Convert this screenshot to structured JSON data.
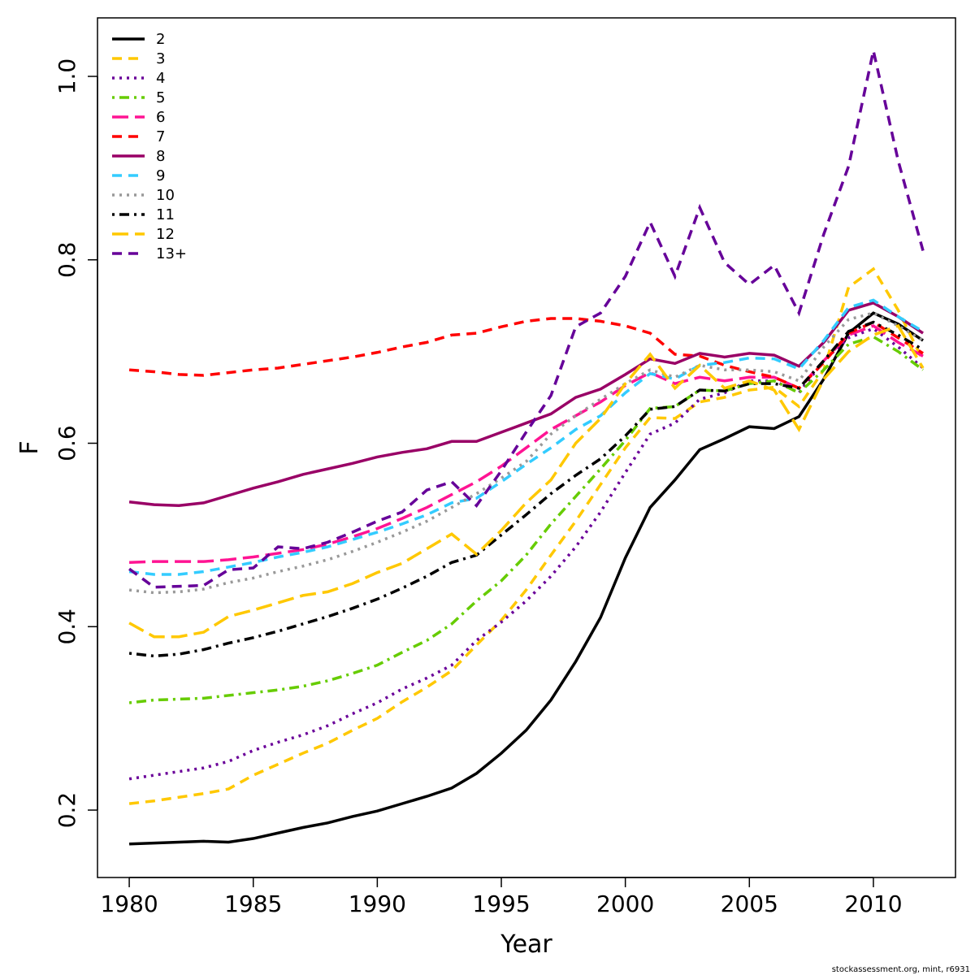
{
  "chart_data": {
    "type": "line",
    "xlabel": "Year",
    "ylabel": "F",
    "footnote": "stockassessment.org, mint, r6931",
    "x": [
      1980,
      1981,
      1982,
      1983,
      1984,
      1985,
      1986,
      1987,
      1988,
      1989,
      1990,
      1991,
      1992,
      1993,
      1994,
      1995,
      1996,
      1997,
      1998,
      1999,
      2000,
      2001,
      2002,
      2003,
      2004,
      2005,
      2006,
      2007,
      2008,
      2009,
      2010,
      2011,
      2012
    ],
    "xlim": [
      1978.72,
      2013.31
    ],
    "xticks": [
      1980,
      1985,
      1990,
      1995,
      2000,
      2005,
      2010
    ],
    "ylim": [
      0.1265,
      1.0638
    ],
    "yticks": [
      0.2,
      0.4,
      0.6,
      0.8,
      {
        "value": 1,
        "label": "1.0"
      }
    ],
    "legend": "top-left",
    "series": [
      {
        "name": "2",
        "color": "#000000",
        "linestyle": "solid",
        "values": [
          0.163,
          0.164,
          0.165,
          0.166,
          0.165,
          0.169,
          0.175,
          0.181,
          0.186,
          0.193,
          0.199,
          0.207,
          0.215,
          0.224,
          0.24,
          0.262,
          0.287,
          0.32,
          0.362,
          0.41,
          0.475,
          0.53,
          0.56,
          0.593,
          0.605,
          0.618,
          0.616,
          0.629,
          0.67,
          0.72,
          0.742,
          0.73,
          0.712
        ]
      },
      {
        "name": "3",
        "color": "#ffc800",
        "linestyle": "dashed",
        "values": [
          0.207,
          0.21,
          0.214,
          0.218,
          0.223,
          0.238,
          0.25,
          0.262,
          0.273,
          0.287,
          0.3,
          0.318,
          0.334,
          0.352,
          0.38,
          0.407,
          0.44,
          0.478,
          0.515,
          0.555,
          0.595,
          0.628,
          0.627,
          0.645,
          0.65,
          0.658,
          0.661,
          0.64,
          0.68,
          0.77,
          0.79,
          0.745,
          0.69
        ]
      },
      {
        "name": "4",
        "color": "#6a0099",
        "linestyle": "dotted",
        "values": [
          0.234,
          0.238,
          0.242,
          0.246,
          0.253,
          0.265,
          0.274,
          0.282,
          0.292,
          0.305,
          0.317,
          0.332,
          0.344,
          0.358,
          0.385,
          0.405,
          0.428,
          0.455,
          0.487,
          0.525,
          0.568,
          0.61,
          0.622,
          0.648,
          0.655,
          0.668,
          0.668,
          0.655,
          0.69,
          0.715,
          0.725,
          0.705,
          0.682
        ]
      },
      {
        "name": "5",
        "color": "#66cc00",
        "linestyle": "dotdash",
        "values": [
          0.317,
          0.32,
          0.321,
          0.322,
          0.325,
          0.328,
          0.331,
          0.335,
          0.341,
          0.349,
          0.358,
          0.372,
          0.385,
          0.403,
          0.428,
          0.45,
          0.478,
          0.512,
          0.542,
          0.572,
          0.603,
          0.638,
          0.64,
          0.658,
          0.657,
          0.665,
          0.668,
          0.655,
          0.68,
          0.708,
          0.716,
          0.7,
          0.68
        ]
      },
      {
        "name": "6",
        "color": "#ff1493",
        "linestyle": "longdash",
        "values": [
          0.47,
          0.471,
          0.471,
          0.471,
          0.473,
          0.476,
          0.48,
          0.484,
          0.49,
          0.498,
          0.507,
          0.518,
          0.53,
          0.544,
          0.558,
          0.575,
          0.595,
          0.615,
          0.63,
          0.645,
          0.663,
          0.677,
          0.665,
          0.672,
          0.668,
          0.672,
          0.672,
          0.66,
          0.69,
          0.718,
          0.728,
          0.71,
          0.695
        ]
      },
      {
        "name": "7",
        "color": "#ff0000",
        "linestyle": "dashed",
        "values": [
          0.68,
          0.678,
          0.675,
          0.674,
          0.677,
          0.68,
          0.682,
          0.686,
          0.69,
          0.694,
          0.699,
          0.705,
          0.71,
          0.718,
          0.72,
          0.727,
          0.733,
          0.736,
          0.736,
          0.733,
          0.728,
          0.72,
          0.697,
          0.695,
          0.685,
          0.678,
          0.672,
          0.66,
          0.688,
          0.72,
          0.732,
          0.715,
          0.698
        ]
      },
      {
        "name": "8",
        "color": "#990066",
        "linestyle": "solid",
        "values": [
          0.536,
          0.533,
          0.532,
          0.535,
          0.543,
          0.551,
          0.558,
          0.566,
          0.572,
          0.578,
          0.585,
          0.59,
          0.594,
          0.602,
          0.602,
          0.612,
          0.622,
          0.632,
          0.65,
          0.659,
          0.675,
          0.692,
          0.687,
          0.698,
          0.694,
          0.698,
          0.696,
          0.684,
          0.71,
          0.745,
          0.753,
          0.738,
          0.72
        ]
      },
      {
        "name": "9",
        "color": "#33ccff",
        "linestyle": "dashed",
        "values": [
          0.46,
          0.457,
          0.457,
          0.46,
          0.465,
          0.47,
          0.476,
          0.481,
          0.487,
          0.495,
          0.503,
          0.512,
          0.522,
          0.535,
          0.54,
          0.558,
          0.577,
          0.595,
          0.615,
          0.63,
          0.655,
          0.676,
          0.67,
          0.685,
          0.688,
          0.693,
          0.692,
          0.681,
          0.712,
          0.748,
          0.756,
          0.738,
          0.722
        ]
      },
      {
        "name": "10",
        "color": "#999999",
        "linestyle": "dotted",
        "values": [
          0.44,
          0.437,
          0.438,
          0.441,
          0.448,
          0.453,
          0.46,
          0.466,
          0.473,
          0.482,
          0.492,
          0.503,
          0.515,
          0.53,
          0.545,
          0.562,
          0.58,
          0.61,
          0.63,
          0.648,
          0.665,
          0.68,
          0.672,
          0.685,
          0.68,
          0.68,
          0.678,
          0.668,
          0.705,
          0.735,
          0.742,
          0.728,
          0.712
        ]
      },
      {
        "name": "11",
        "color": "#000000",
        "linestyle": "dotdash",
        "values": [
          0.371,
          0.368,
          0.37,
          0.375,
          0.382,
          0.388,
          0.395,
          0.403,
          0.411,
          0.42,
          0.43,
          0.442,
          0.455,
          0.47,
          0.478,
          0.5,
          0.522,
          0.545,
          0.565,
          0.583,
          0.608,
          0.637,
          0.64,
          0.658,
          0.657,
          0.665,
          0.665,
          0.66,
          0.69,
          0.722,
          0.732,
          0.718,
          0.702
        ]
      },
      {
        "name": "12",
        "color": "#ffc800",
        "linestyle": "longdash",
        "values": [
          0.404,
          0.389,
          0.389,
          0.394,
          0.411,
          0.418,
          0.426,
          0.434,
          0.438,
          0.447,
          0.459,
          0.469,
          0.485,
          0.501,
          0.479,
          0.505,
          0.535,
          0.56,
          0.6,
          0.627,
          0.665,
          0.697,
          0.66,
          0.685,
          0.66,
          0.668,
          0.658,
          0.615,
          0.67,
          0.7,
          0.718,
          0.728,
          0.682
        ]
      },
      {
        "name": "13+",
        "color": "#660099",
        "linestyle": "dashed",
        "values": [
          0.463,
          0.443,
          0.444,
          0.445,
          0.462,
          0.464,
          0.487,
          0.485,
          0.492,
          0.503,
          0.515,
          0.525,
          0.549,
          0.558,
          0.532,
          0.57,
          0.612,
          0.652,
          0.727,
          0.742,
          0.782,
          0.841,
          0.782,
          0.857,
          0.797,
          0.773,
          0.794,
          0.742,
          0.828,
          0.902,
          1.028,
          0.908,
          0.81
        ]
      }
    ]
  }
}
